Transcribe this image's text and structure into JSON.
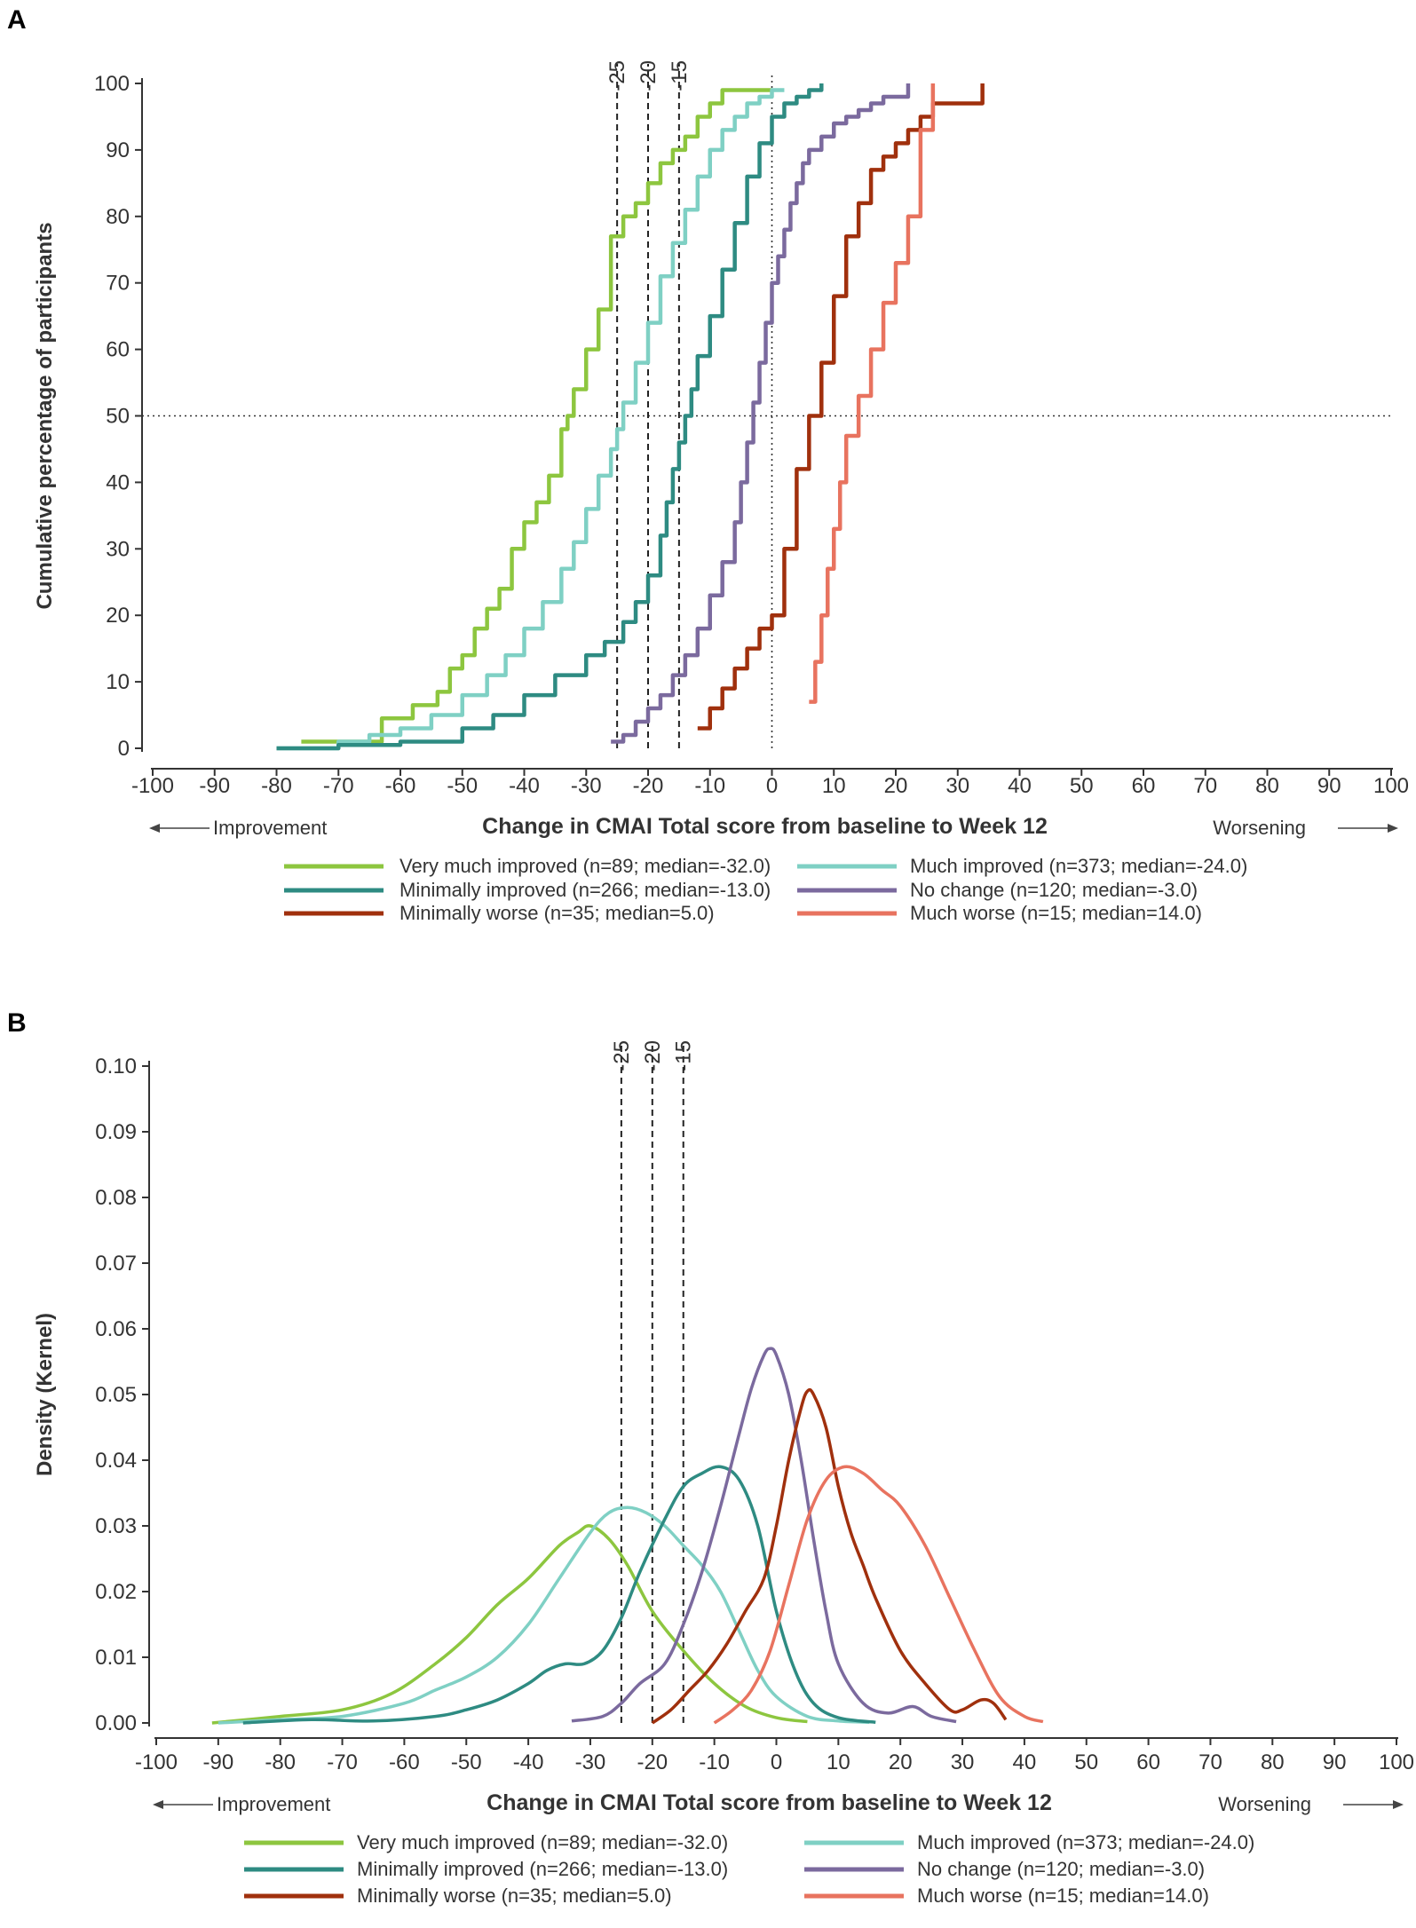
{
  "chart_data": [
    {
      "panel": "A",
      "type": "line",
      "subtype": "empirical-cdf-step",
      "xlabel": "Change in CMAI Total score from baseline to Week 12",
      "ylabel": "Cumulative percentage of participants",
      "xlim": [
        -100,
        100
      ],
      "ylim": [
        0,
        100
      ],
      "xticks": [
        "-100",
        "-90",
        "-80",
        "-70",
        "-60",
        "-50",
        "-40",
        "-30",
        "-20",
        "-10",
        "0",
        "10",
        "20",
        "30",
        "40",
        "50",
        "60",
        "70",
        "80",
        "90",
        "100"
      ],
      "yticks": [
        "0",
        "10",
        "20",
        "30",
        "40",
        "50",
        "60",
        "70",
        "80",
        "90",
        "100"
      ],
      "reference_lines": {
        "vertical_dashed": [
          -25,
          -20,
          -15
        ],
        "vertical_labels": [
          "-25",
          "-20",
          "-15"
        ],
        "vertical_dotted": [
          0
        ],
        "horizontal_dotted": [
          50
        ]
      },
      "direction_labels": {
        "left": "Improvement",
        "right": "Worsening"
      },
      "series": [
        {
          "name": "Very much improved (n=89; median=-32.0)",
          "color": "#8dc63f",
          "x": [
            -76,
            -65,
            -63,
            -58,
            -54,
            -52,
            -50,
            -48,
            -46,
            -44,
            -42,
            -40,
            -38,
            -36,
            -34,
            -33,
            -32,
            -30,
            -28,
            -26,
            -24,
            -22,
            -20,
            -18,
            -16,
            -14,
            -12,
            -10,
            -8,
            -6,
            -4,
            -2,
            0
          ],
          "y": [
            1,
            1,
            4.5,
            6.5,
            8.5,
            12,
            14,
            18,
            21,
            24,
            30,
            34,
            37,
            41,
            48,
            50,
            54,
            60,
            66,
            77,
            80,
            82,
            85,
            88,
            90,
            92,
            95,
            97,
            99,
            99,
            99,
            99,
            99
          ]
        },
        {
          "name": "Much improved (n=373; median=-24.0)",
          "color": "#7fd0c4",
          "x": [
            -80,
            -70,
            -65,
            -60,
            -55,
            -50,
            -46,
            -43,
            -40,
            -37,
            -34,
            -32,
            -30,
            -28,
            -26,
            -25,
            -24,
            -22,
            -20,
            -18,
            -16,
            -14,
            -12,
            -10,
            -8,
            -6,
            -4,
            -2,
            0,
            2
          ],
          "y": [
            0,
            1,
            2,
            3,
            5,
            8,
            11,
            14,
            18,
            22,
            27,
            31,
            36,
            41,
            45,
            48,
            52,
            58,
            64,
            71,
            76,
            81,
            86,
            90,
            93,
            95,
            97,
            98,
            99,
            99
          ]
        },
        {
          "name": "Minimally improved (n=266; median=-13.0)",
          "color": "#2e8b82",
          "x": [
            -80,
            -70,
            -60,
            -50,
            -45,
            -40,
            -35,
            -30,
            -27,
            -24,
            -22,
            -20,
            -18,
            -17,
            -16,
            -15,
            -14,
            -13,
            -12,
            -10,
            -8,
            -6,
            -4,
            -2,
            0,
            2,
            4,
            6,
            8
          ],
          "y": [
            0,
            0.5,
            1,
            3,
            5,
            8,
            11,
            14,
            16,
            19,
            22,
            26,
            32,
            37,
            42,
            46,
            50,
            54,
            59,
            65,
            72,
            79,
            86,
            91,
            95,
            97,
            98,
            99,
            100
          ]
        },
        {
          "name": "No change (n=120; median=-3.0)",
          "color": "#7b6a9e",
          "x": [
            -26,
            -24,
            -22,
            -20,
            -18,
            -16,
            -14,
            -12,
            -10,
            -8,
            -6,
            -5,
            -4,
            -3,
            -2,
            -1,
            0,
            1,
            2,
            3,
            4,
            5,
            6,
            8,
            10,
            12,
            14,
            16,
            18,
            20,
            22
          ],
          "y": [
            1,
            2,
            4,
            6,
            8,
            11,
            14,
            18,
            23,
            28,
            34,
            40,
            46,
            52,
            58,
            64,
            70,
            74,
            78,
            82,
            85,
            88,
            90,
            92,
            94,
            95,
            96,
            97,
            98,
            98,
            100
          ]
        },
        {
          "name": "Minimally worse (n=35; median=5.0)",
          "color": "#a0300d",
          "x": [
            -12,
            -10,
            -8,
            -6,
            -4,
            -2,
            0,
            2,
            4,
            6,
            8,
            10,
            12,
            14,
            16,
            18,
            20,
            22,
            24,
            26,
            28,
            30,
            32,
            34
          ],
          "y": [
            3,
            6,
            9,
            12,
            15,
            18,
            20,
            30,
            42,
            50,
            58,
            68,
            77,
            82,
            87,
            89,
            91,
            93,
            95,
            97,
            97,
            97,
            97,
            100
          ]
        },
        {
          "name": "Much worse (n=15; median=14.0)",
          "color": "#e8735f",
          "x": [
            6,
            7,
            8,
            9,
            10,
            11,
            12,
            14,
            16,
            18,
            20,
            22,
            24,
            26
          ],
          "y": [
            7,
            13,
            20,
            27,
            33,
            40,
            47,
            53,
            60,
            67,
            73,
            80,
            93,
            100
          ]
        }
      ]
    },
    {
      "panel": "B",
      "type": "line",
      "subtype": "kernel-density",
      "xlabel": "Change in CMAI Total score from baseline to Week 12",
      "ylabel": "Density (Kernel)",
      "xlim": [
        -100,
        100
      ],
      "ylim": [
        0,
        0.1
      ],
      "xticks": [
        "-100",
        "-90",
        "-80",
        "-70",
        "-60",
        "-50",
        "-40",
        "-30",
        "-20",
        "-10",
        "0",
        "10",
        "20",
        "30",
        "40",
        "50",
        "60",
        "70",
        "80",
        "90",
        "100"
      ],
      "yticks": [
        "0.00",
        "0.01",
        "0.02",
        "0.03",
        "0.04",
        "0.05",
        "0.06",
        "0.07",
        "0.08",
        "0.09",
        "0.10"
      ],
      "reference_lines": {
        "vertical_dashed": [
          -25,
          -20,
          -15
        ],
        "vertical_labels": [
          "-25",
          "-20",
          "-15"
        ]
      },
      "direction_labels": {
        "left": "Improvement",
        "right": "Worsening"
      },
      "series": [
        {
          "name": "Very much improved (n=89; median=-32.0)",
          "color": "#8dc63f",
          "x": [
            -91,
            -80,
            -70,
            -62,
            -55,
            -50,
            -45,
            -40,
            -35,
            -32,
            -30,
            -27,
            -24,
            -20,
            -15,
            -10,
            -5,
            0,
            5
          ],
          "y": [
            0,
            0.001,
            0.002,
            0.0045,
            0.009,
            0.013,
            0.018,
            0.022,
            0.027,
            0.029,
            0.03,
            0.028,
            0.024,
            0.017,
            0.011,
            0.006,
            0.0025,
            0.0008,
            0.0002
          ]
        },
        {
          "name": "Much improved (n=373; median=-24.0)",
          "color": "#7fd0c4",
          "x": [
            -90,
            -80,
            -70,
            -60,
            -55,
            -50,
            -45,
            -40,
            -35,
            -30,
            -27,
            -24,
            -21,
            -18,
            -15,
            -12,
            -9,
            -6,
            -3,
            0,
            5,
            10,
            15
          ],
          "y": [
            0,
            0.0005,
            0.001,
            0.003,
            0.005,
            0.007,
            0.01,
            0.015,
            0.022,
            0.029,
            0.032,
            0.0328,
            0.032,
            0.03,
            0.027,
            0.024,
            0.02,
            0.014,
            0.008,
            0.004,
            0.001,
            0.0003,
            0.0001
          ]
        },
        {
          "name": "Minimally improved (n=266; median=-13.0)",
          "color": "#2e8b82",
          "x": [
            -86,
            -75,
            -65,
            -55,
            -50,
            -45,
            -40,
            -37,
            -34,
            -31,
            -28,
            -25,
            -22,
            -18,
            -15,
            -12,
            -9,
            -6,
            -3,
            0,
            3,
            6,
            10,
            16
          ],
          "y": [
            0,
            0.0005,
            0.0003,
            0.001,
            0.002,
            0.0035,
            0.006,
            0.008,
            0.009,
            0.009,
            0.011,
            0.016,
            0.023,
            0.031,
            0.036,
            0.038,
            0.039,
            0.037,
            0.03,
            0.017,
            0.008,
            0.003,
            0.0008,
            0.0001
          ]
        },
        {
          "name": "No change (n=120; median=-3.0)",
          "color": "#7b6a9e",
          "x": [
            -33,
            -28,
            -25,
            -22,
            -18,
            -15,
            -12,
            -9,
            -6,
            -4,
            -2,
            -1,
            0,
            2,
            4,
            6,
            8,
            10,
            14,
            18,
            22,
            25,
            29
          ],
          "y": [
            0.0003,
            0.001,
            0.003,
            0.006,
            0.009,
            0.015,
            0.023,
            0.033,
            0.044,
            0.051,
            0.056,
            0.057,
            0.056,
            0.05,
            0.04,
            0.028,
            0.017,
            0.009,
            0.003,
            0.0015,
            0.0025,
            0.001,
            0.0002
          ]
        },
        {
          "name": "Minimally worse (n=35; median=5.0)",
          "color": "#a0300d",
          "x": [
            -20,
            -17,
            -14,
            -11,
            -8,
            -5,
            -2,
            0,
            2,
            4,
            5,
            6,
            8,
            10,
            12,
            14,
            16,
            20,
            24,
            28,
            30,
            33,
            35,
            37
          ],
          "y": [
            0,
            0.002,
            0.005,
            0.008,
            0.012,
            0.017,
            0.022,
            0.03,
            0.04,
            0.048,
            0.0505,
            0.05,
            0.045,
            0.036,
            0.029,
            0.024,
            0.019,
            0.011,
            0.006,
            0.002,
            0.002,
            0.0035,
            0.003,
            0.0005
          ]
        },
        {
          "name": "Much worse (n=15; median=14.0)",
          "color": "#e8735f",
          "x": [
            -10,
            -7,
            -4,
            -1,
            2,
            5,
            8,
            11,
            14,
            17,
            20,
            24,
            28,
            32,
            36,
            40,
            43
          ],
          "y": [
            0,
            0.002,
            0.005,
            0.011,
            0.021,
            0.031,
            0.037,
            0.039,
            0.038,
            0.0355,
            0.033,
            0.027,
            0.019,
            0.011,
            0.004,
            0.001,
            0.0002
          ]
        }
      ]
    }
  ]
}
